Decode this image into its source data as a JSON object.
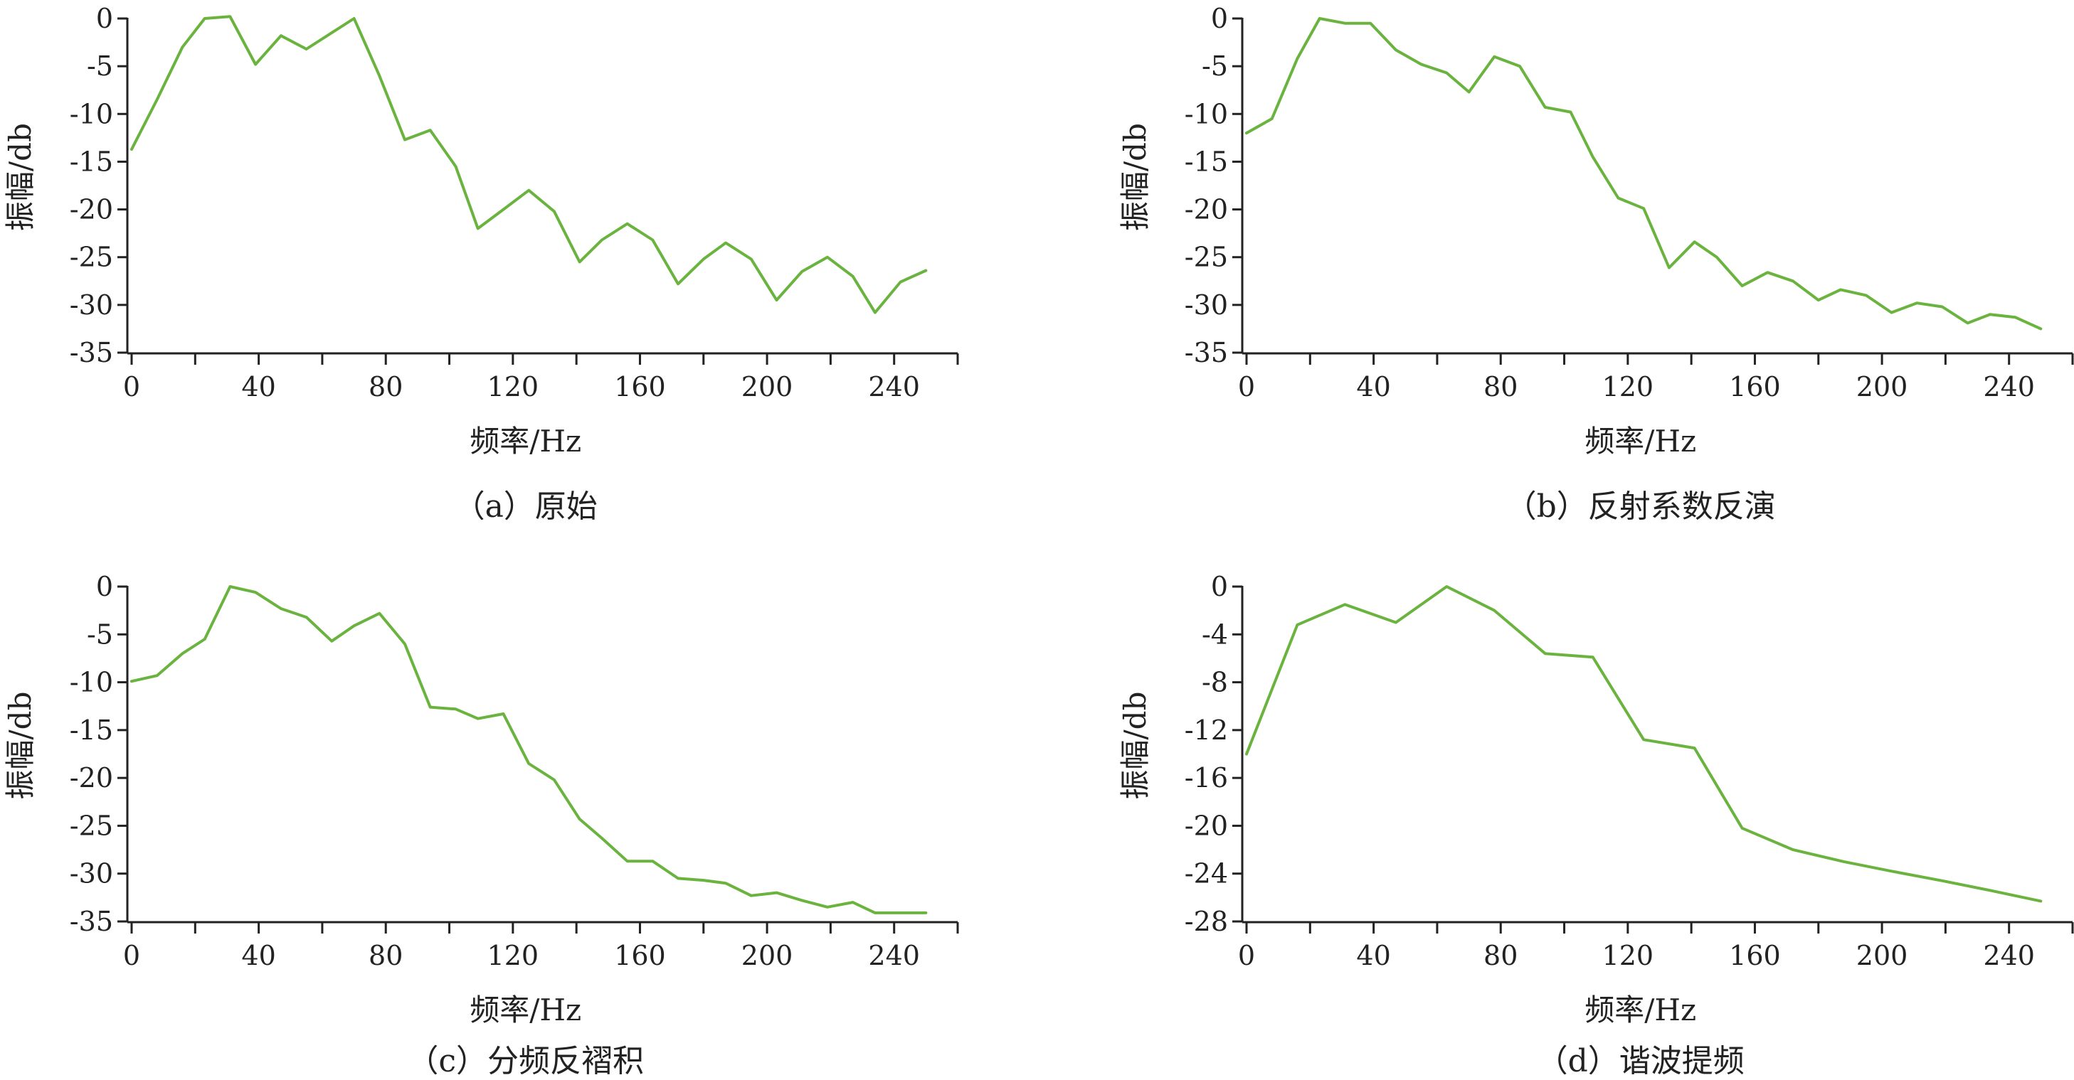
{
  "line_color": "#6ab33e",
  "chart_data": [
    {
      "type": "line",
      "caption": "（a）原始",
      "xlabel": "频率/Hz",
      "ylabel": "振幅/db",
      "xlim": [
        0,
        260
      ],
      "ylim": [
        -35,
        0
      ],
      "xticks": [
        0,
        40,
        80,
        120,
        160,
        200,
        240
      ],
      "yticks": [
        0,
        -5,
        -10,
        -15,
        -20,
        -25,
        -30,
        -35
      ],
      "xtick_labels": [
        "0",
        "40",
        "80",
        "120",
        "160",
        "200",
        "240"
      ],
      "ytick_labels": [
        "0",
        "-5",
        "-10",
        "-15",
        "-20",
        "-25",
        "-30",
        "-35"
      ],
      "series": [
        {
          "x": [
            0,
            8,
            16,
            23,
            31,
            39,
            47,
            55,
            63,
            70,
            78,
            86,
            94,
            102,
            109,
            117,
            125,
            133,
            141,
            148,
            156,
            164,
            172,
            180,
            187,
            195,
            203,
            211,
            219,
            227,
            234,
            242,
            250
          ],
          "y": [
            -13.7,
            -8.5,
            -3,
            0,
            0.2,
            -4.8,
            -1.8,
            -3.2,
            -1.5,
            0,
            -6,
            -12.7,
            -11.7,
            -15.5,
            -22,
            -20,
            -18,
            -20.2,
            -25.5,
            -23.2,
            -21.5,
            -23.2,
            -27.8,
            -25.2,
            -23.5,
            -25.2,
            -29.5,
            -26.5,
            -25,
            -27,
            -30.8,
            -27.6,
            -26.4
          ]
        }
      ]
    },
    {
      "type": "line",
      "caption": "（b）反射系数反演",
      "xlabel": "频率/Hz",
      "ylabel": "振幅/db",
      "xlim": [
        0,
        260
      ],
      "ylim": [
        -35,
        0
      ],
      "xticks": [
        0,
        40,
        80,
        120,
        160,
        200,
        240
      ],
      "yticks": [
        0,
        -5,
        -10,
        -15,
        -20,
        -25,
        -30,
        -35
      ],
      "xtick_labels": [
        "0",
        "40",
        "80",
        "120",
        "160",
        "200",
        "240"
      ],
      "ytick_labels": [
        "0",
        "-5",
        "-10",
        "-15",
        "-20",
        "-25",
        "-30",
        "-35"
      ],
      "series": [
        {
          "x": [
            0,
            8,
            16,
            23,
            31,
            39,
            47,
            55,
            63,
            70,
            78,
            86,
            94,
            102,
            109,
            117,
            125,
            133,
            141,
            148,
            156,
            164,
            172,
            180,
            187,
            195,
            203,
            211,
            219,
            227,
            234,
            242,
            250
          ],
          "y": [
            -12,
            -10.5,
            -4.2,
            0,
            -0.5,
            -0.5,
            -3.3,
            -4.8,
            -5.7,
            -7.7,
            -4,
            -5,
            -9.3,
            -9.8,
            -14.5,
            -18.8,
            -19.9,
            -26.1,
            -23.4,
            -25,
            -28,
            -26.6,
            -27.5,
            -29.5,
            -28.4,
            -29,
            -30.8,
            -29.8,
            -30.2,
            -31.9,
            -31,
            -31.3,
            -32.5
          ]
        }
      ]
    },
    {
      "type": "line",
      "caption": "（c）分频反褶积",
      "xlabel": "频率/Hz",
      "ylabel": "振幅/db",
      "xlim": [
        0,
        260
      ],
      "ylim": [
        -35,
        0
      ],
      "xticks": [
        0,
        40,
        80,
        120,
        160,
        200,
        240
      ],
      "yticks": [
        0,
        -5,
        -10,
        -15,
        -20,
        -25,
        -30,
        -35
      ],
      "xtick_labels": [
        "0",
        "40",
        "80",
        "120",
        "160",
        "200",
        "240"
      ],
      "ytick_labels": [
        "0",
        "-5",
        "-10",
        "-15",
        "-20",
        "-25",
        "-30",
        "-35"
      ],
      "series": [
        {
          "x": [
            0,
            8,
            16,
            23,
            31,
            39,
            47,
            55,
            63,
            70,
            78,
            86,
            94,
            102,
            109,
            117,
            125,
            133,
            141,
            148,
            156,
            164,
            172,
            180,
            187,
            195,
            203,
            211,
            219,
            227,
            234,
            242,
            250
          ],
          "y": [
            -9.9,
            -9.3,
            -7,
            -5.5,
            0,
            -0.6,
            -2.3,
            -3.2,
            -5.7,
            -4.1,
            -2.8,
            -6,
            -12.6,
            -12.8,
            -13.8,
            -13.3,
            -18.5,
            -20.2,
            -24.3,
            -26.3,
            -28.7,
            -28.7,
            -30.5,
            -30.7,
            -31,
            -32.3,
            -32,
            -32.8,
            -33.5,
            -33,
            -34.1,
            -34.1,
            -34.1
          ]
        }
      ]
    },
    {
      "type": "line",
      "caption": "（d）谐波提频",
      "xlabel": "频率/Hz",
      "ylabel": "振幅/db",
      "xlim": [
        0,
        260
      ],
      "ylim": [
        -28,
        0
      ],
      "xticks": [
        0,
        40,
        80,
        120,
        160,
        200,
        240
      ],
      "yticks": [
        0,
        -4,
        -8,
        -12,
        -16,
        -20,
        -24,
        -28
      ],
      "xtick_labels": [
        "0",
        "40",
        "80",
        "120",
        "160",
        "200",
        "240"
      ],
      "ytick_labels": [
        "0",
        "-4",
        "-8",
        "-12",
        "-16",
        "-20",
        "-24",
        "-28"
      ],
      "series": [
        {
          "x": [
            0,
            16,
            31,
            47,
            63,
            78,
            94,
            109,
            125,
            141,
            156,
            172,
            188,
            203,
            219,
            234,
            250
          ],
          "y": [
            -14,
            -3.2,
            -1.5,
            -3,
            0,
            -2,
            -5.6,
            -5.9,
            -12.8,
            -13.5,
            -20.2,
            -22,
            -23,
            -23.8,
            -24.6,
            -25.4,
            -26.3
          ]
        }
      ]
    }
  ]
}
